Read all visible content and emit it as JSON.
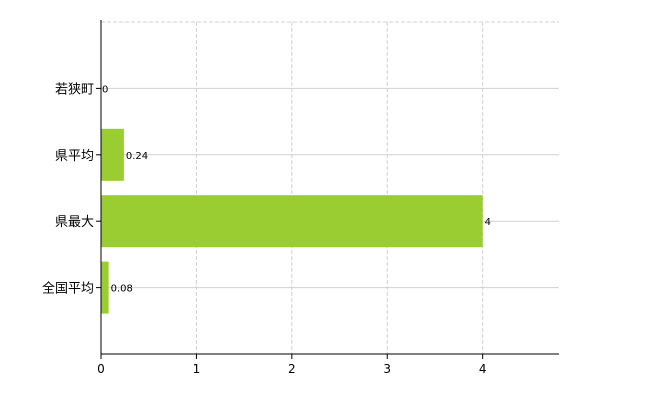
{
  "chart_data": {
    "type": "bar",
    "orientation": "horizontal",
    "categories": [
      "若狭町",
      "県平均",
      "県最大",
      "全国平均"
    ],
    "values": [
      0,
      0.24,
      4,
      0.08
    ],
    "data_labels": [
      "0",
      "0.24",
      "4",
      "0.08"
    ],
    "x_ticks": [
      0,
      1,
      2,
      3,
      4
    ],
    "xlim": [
      0,
      4.8
    ],
    "grid": true,
    "bar_color": "#9acd32",
    "zero_label_color": "#1e88e5",
    "title": "",
    "xlabel": "",
    "ylabel": ""
  }
}
